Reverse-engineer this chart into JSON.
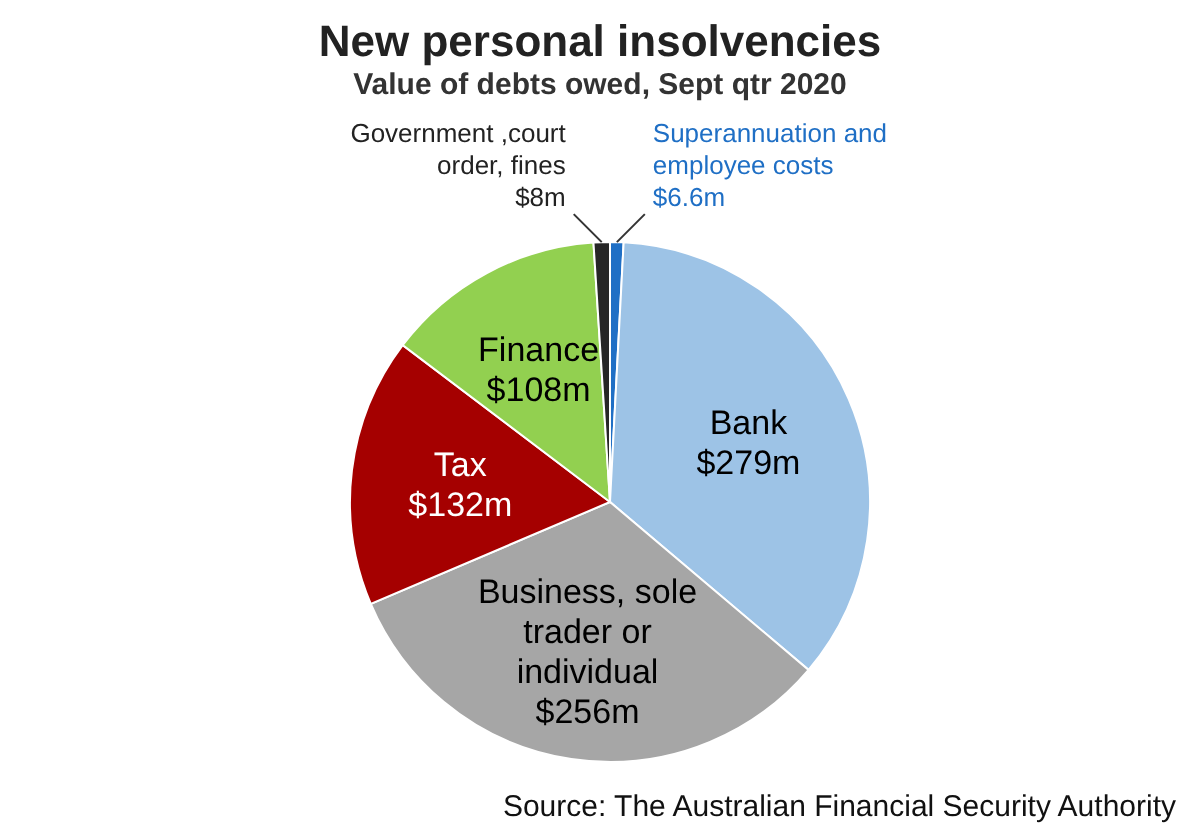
{
  "chart_data": {
    "type": "pie",
    "title": "New personal insolvencies",
    "subtitle": "Value of debts owed, Sept qtr 2020",
    "categories": [
      "Superannuation and employee costs",
      "Bank",
      "Business, sole trader or individual",
      "Tax",
      "Finance",
      "Government ,court order, fines"
    ],
    "values": [
      6.6,
      279,
      256,
      132,
      108,
      8
    ],
    "value_labels": [
      "$6.6m",
      "$279m",
      "$256m",
      "$132m",
      "$108m",
      "$8m"
    ],
    "colors": [
      "#1f6fc5",
      "#9dc3e6",
      "#a6a6a6",
      "#a50000",
      "#92d050",
      "#262626"
    ],
    "annotations": [
      "Source: The Australian Financial Security Authority"
    ]
  }
}
